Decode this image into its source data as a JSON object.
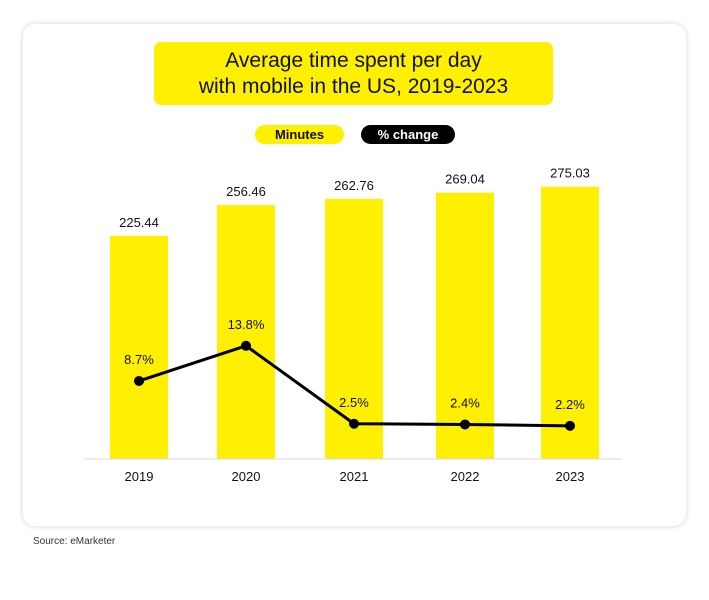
{
  "title_lines": [
    "Average time spent per day",
    "with mobile in the US, 2019-2023"
  ],
  "legend": {
    "minutes": "Minutes",
    "change": "% change"
  },
  "source": "Source: eMarketer",
  "colors": {
    "bar": "#ffef00",
    "line": "#000000"
  },
  "chart_data": {
    "type": "bar",
    "title": "Average time spent per day with mobile in the US, 2019-2023",
    "categories": [
      "2019",
      "2020",
      "2021",
      "2022",
      "2023"
    ],
    "series": [
      {
        "name": "Minutes",
        "type": "bar",
        "values": [
          225.44,
          256.46,
          262.76,
          269.04,
          275.03
        ],
        "labels": [
          "225.44",
          "256.46",
          "262.76",
          "269.04",
          "275.03"
        ]
      },
      {
        "name": "% change",
        "type": "line",
        "values": [
          8.7,
          13.8,
          2.5,
          2.4,
          2.2
        ],
        "labels": [
          "8.7%",
          "13.8%",
          "2.5%",
          "2.4%",
          "2.2%"
        ]
      }
    ],
    "grid": false,
    "legend_position": "top"
  }
}
